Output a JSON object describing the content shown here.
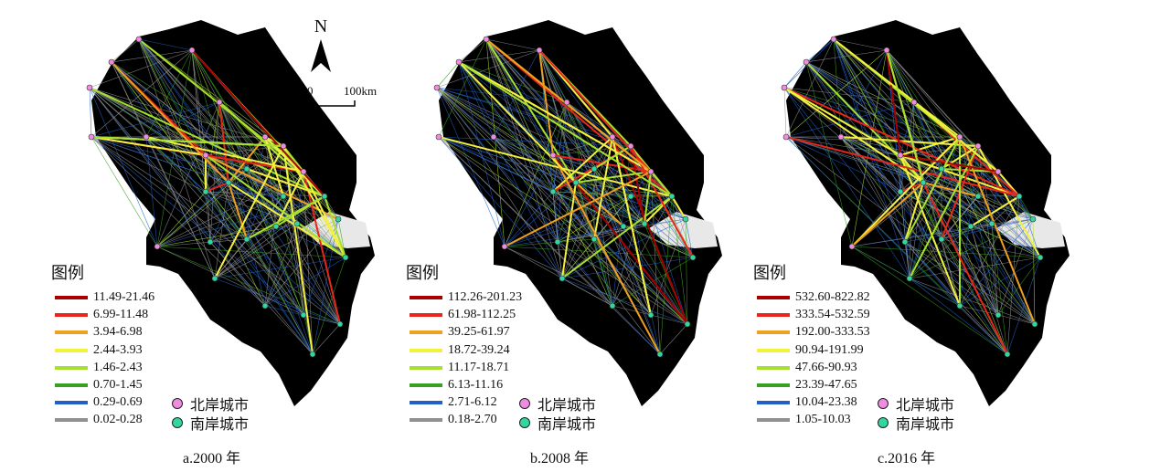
{
  "panels": [
    {
      "caption": "a.2000 年",
      "legend_title": "图例",
      "legend": [
        {
          "label": "11.49-21.46",
          "color": "#a80000"
        },
        {
          "label": "6.99-11.48",
          "color": "#e8261b"
        },
        {
          "label": "3.94-6.98",
          "color": "#f0a020"
        },
        {
          "label": "2.44-3.93",
          "color": "#f4f040"
        },
        {
          "label": "1.46-2.43",
          "color": "#a8e030"
        },
        {
          "label": "0.70-1.45",
          "color": "#3aa020"
        },
        {
          "label": "0.29-0.69",
          "color": "#2060c8"
        },
        {
          "label": "0.02-0.28",
          "color": "#909090"
        }
      ],
      "north_label": "北岸城市",
      "south_label": "南岸城市"
    },
    {
      "caption": "b.2008 年",
      "legend_title": "图例",
      "legend": [
        {
          "label": "112.26-201.23",
          "color": "#a80000"
        },
        {
          "label": "61.98-112.25",
          "color": "#e8261b"
        },
        {
          "label": "39.25-61.97",
          "color": "#f0a020"
        },
        {
          "label": "18.72-39.24",
          "color": "#f4f040"
        },
        {
          "label": "11.17-18.71",
          "color": "#a8e030"
        },
        {
          "label": "6.13-11.16",
          "color": "#3aa020"
        },
        {
          "label": "2.71-6.12",
          "color": "#2060c8"
        },
        {
          "label": "0.18-2.70",
          "color": "#909090"
        }
      ],
      "north_label": "北岸城市",
      "south_label": "南岸城市"
    },
    {
      "caption": "c.2016 年",
      "legend_title": "图例",
      "legend": [
        {
          "label": "532.60-822.82",
          "color": "#a80000"
        },
        {
          "label": "333.54-532.59",
          "color": "#e8261b"
        },
        {
          "label": "192.00-333.53",
          "color": "#f0a020"
        },
        {
          "label": "90.94-191.99",
          "color": "#f4f040"
        },
        {
          "label": "47.66-90.93",
          "color": "#a8e030"
        },
        {
          "label": "23.39-47.65",
          "color": "#3aa020"
        },
        {
          "label": "10.04-23.38",
          "color": "#2060c8"
        },
        {
          "label": "1.05-10.03",
          "color": "#909090"
        }
      ],
      "north_label": "北岸城市",
      "south_label": "南岸城市"
    }
  ],
  "north_arrow": {
    "letter": "N"
  },
  "scale_bar": {
    "zero": "0",
    "end": "100km"
  },
  "colors": {
    "north_city": "#f08ce0",
    "south_city": "#30d8a0",
    "land": "#000000",
    "water": "#ffffff"
  }
}
